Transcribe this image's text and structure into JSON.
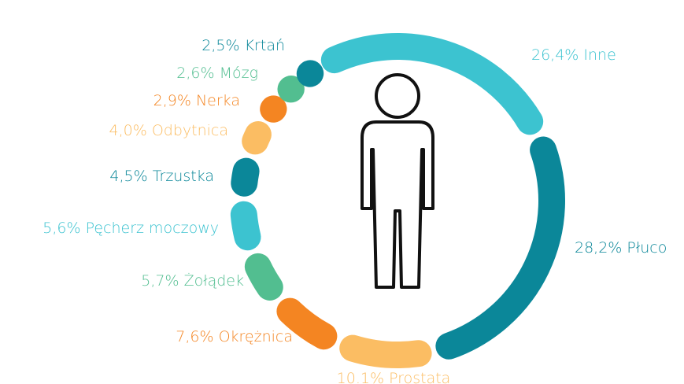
{
  "chart_data": {
    "type": "donut",
    "categories": [
      "Inne",
      "Płuco",
      "Prostata",
      "Okrężnica",
      "Żołądek",
      "Pęcherz moczowy",
      "Trzustka",
      "Odbytnica",
      "Nerka",
      "Mózg",
      "Krtań"
    ],
    "values": [
      26.4,
      28.2,
      10.1,
      7.6,
      5.7,
      5.6,
      4.5,
      4.0,
      2.9,
      2.6,
      2.5
    ],
    "value_labels": [
      "26,4%",
      "28,2%",
      "10.1%",
      "7,6%",
      "5,7%",
      "5,6%",
      "4,5%",
      "4,0%",
      "2,9%",
      "2,6%",
      "2,5%"
    ],
    "colors": [
      "#3cc3d0",
      "#0b8799",
      "#fbbd63",
      "#f48522",
      "#52be90",
      "#3cc3d0",
      "#0b8799",
      "#fbbd63",
      "#f48522",
      "#52be90",
      "#0b8799"
    ]
  }
}
